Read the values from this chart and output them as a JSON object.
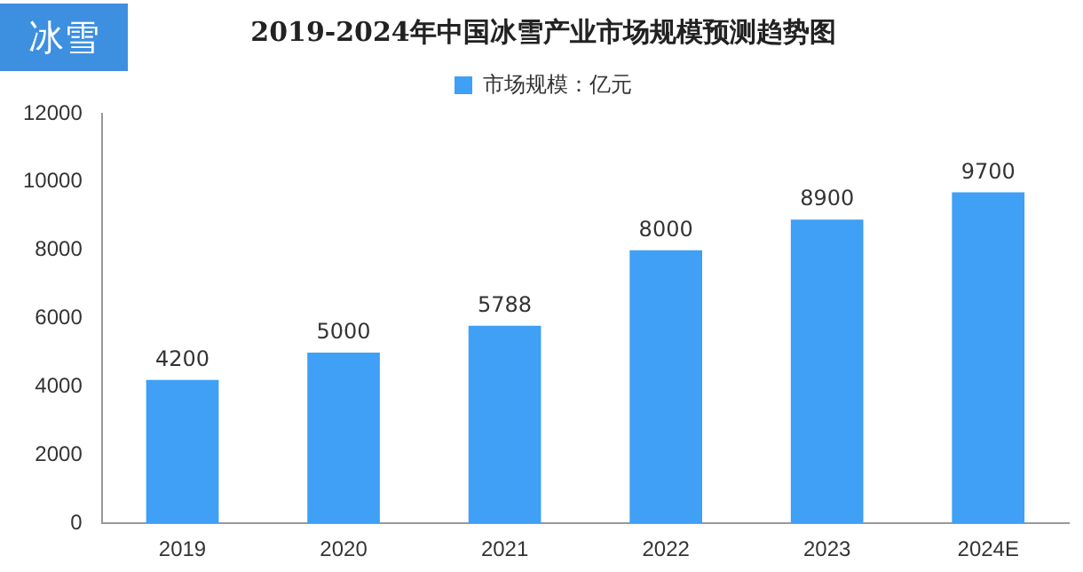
{
  "chart_data": {
    "type": "bar",
    "title": "2019-2024年中国冰雪产业市场规模预测趋势图",
    "annotations": [
      "冰雪"
    ],
    "categories": [
      "2019",
      "2020",
      "2021",
      "2022",
      "2023",
      "2024E"
    ],
    "series": [
      {
        "name": "市场规模：亿元",
        "color": "#3fa0f5",
        "values": [
          4200,
          5000,
          5788,
          8000,
          8900,
          9700
        ]
      }
    ],
    "ylim": [
      0,
      12000
    ],
    "yticks": [
      0,
      2000,
      4000,
      6000,
      8000,
      10000,
      12000
    ],
    "grid": false,
    "legend": "top",
    "data_labels": true
  }
}
